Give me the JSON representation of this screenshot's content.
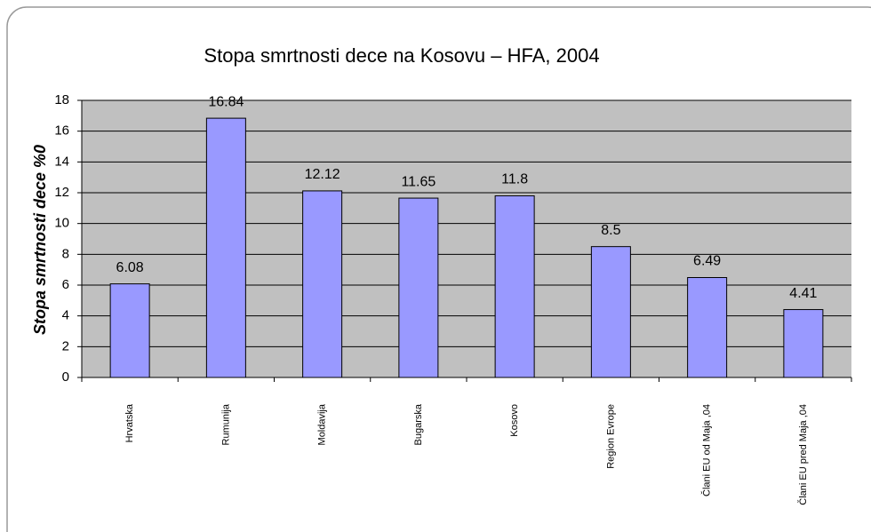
{
  "chart_data": {
    "type": "bar",
    "title": "Stopa smrtnosti dece na Kosovu – HFA, 2004",
    "y_label": "Stopa smrtnosti dece  %0",
    "categories": [
      "Hrvatska",
      "Rumunija",
      "Moldavija",
      "Bugarska",
      "Kosovo",
      "Region Evrope",
      "Člani EU od Maja ,04",
      "Člani EU pred Maja ,04"
    ],
    "values": [
      6.08,
      16.84,
      12.12,
      11.65,
      11.8,
      8.5,
      6.49,
      4.41
    ],
    "color": "#9999ff",
    "ylim": [
      0,
      18
    ],
    "yticks": [
      0,
      2,
      4,
      6,
      8,
      10,
      12,
      14,
      16,
      18
    ],
    "grid": true
  }
}
